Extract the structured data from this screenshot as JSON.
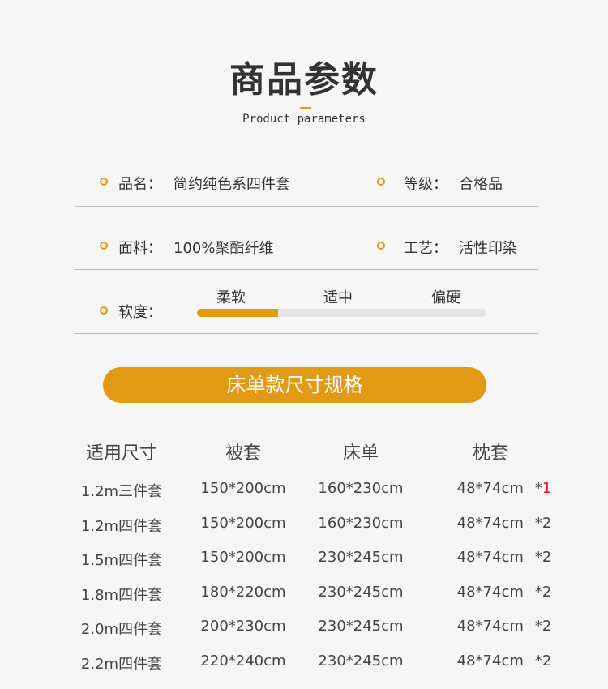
{
  "header": {
    "title": "商品参数",
    "subtitle": "Product parameters"
  },
  "params": [
    {
      "label": "品名：",
      "value": "简约纯色系四件套"
    },
    {
      "label": "等级：",
      "value": "合格品"
    },
    {
      "label": "面料：",
      "value": "100%聚酯纤维"
    },
    {
      "label": "工艺：",
      "value": "活性印染"
    }
  ],
  "softness": {
    "label": "软度：",
    "options": [
      "柔软",
      "适中",
      "偏硬"
    ],
    "level": 0.28
  },
  "banner": "床单款尺寸规格",
  "table": {
    "headers": [
      "适用尺寸",
      "被套",
      "床单",
      "枕套"
    ],
    "rows": [
      [
        "1.2m三件套",
        "150*200cm",
        "160*230cm",
        "48*74cm",
        "*",
        "1"
      ],
      [
        "1.2m四件套",
        "150*200cm",
        "160*230cm",
        "48*74cm",
        "*",
        "2"
      ],
      [
        "1.5m四件套",
        "150*200cm",
        "230*245cm",
        "48*74cm",
        "*",
        "2"
      ],
      [
        "1.8m四件套",
        "180*220cm",
        "230*245cm",
        "48*74cm",
        "*",
        "2"
      ],
      [
        "2.0m四件套",
        "200*230cm",
        "230*245cm",
        "48*74cm",
        "*",
        "2"
      ],
      [
        "2.2m四件套",
        "220*240cm",
        "230*245cm",
        "48*74cm",
        "*",
        "2"
      ]
    ]
  },
  "colors": {
    "accent": "#e09a16",
    "highlight": "#e0141e"
  }
}
